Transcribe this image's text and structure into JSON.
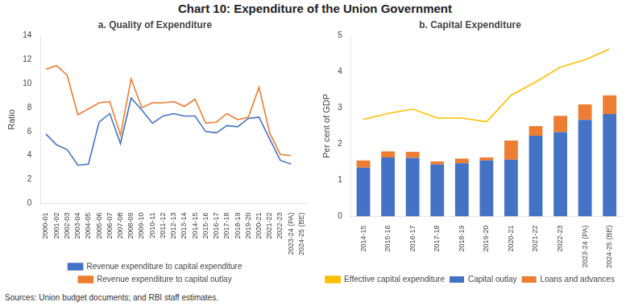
{
  "title": "Chart 10: Expenditure of the Union Government",
  "annotations": [
    "Sources: Union budget documents; and RBI staff estimates."
  ],
  "chart_data": [
    {
      "type": "line",
      "title": "a. Quality of Expenditure",
      "ylabel": "Ratio",
      "categories": [
        "2000-01",
        "2001-02",
        "2002-03",
        "2003-04",
        "2004-05",
        "2005-06",
        "2006-07",
        "2007-08",
        "2008-09",
        "2009-10",
        "2010-11",
        "2011-12",
        "2012-13",
        "2013-14",
        "2014-15",
        "2015-16",
        "2016-17",
        "2017-18",
        "2018-19",
        "2019-20",
        "2020-21",
        "2021-22",
        "2022-23",
        "2023-24 (PA)",
        "2024-25 (BE)"
      ],
      "series": [
        {
          "name": "Revenue expenditure to capital expenditure",
          "color": "#4472c4",
          "values": [
            5.8,
            4.9,
            4.5,
            3.2,
            3.3,
            6.8,
            7.5,
            5.0,
            8.8,
            7.8,
            6.7,
            7.3,
            7.5,
            7.3,
            7.3,
            6.0,
            5.9,
            6.5,
            6.4,
            7.1,
            7.2,
            5.4,
            3.6,
            3.3,
            null
          ]
        },
        {
          "name": "Revenue expenditure to capital outlay",
          "color": "#ed7d31",
          "values": [
            11.2,
            11.5,
            10.7,
            7.4,
            7.9,
            8.4,
            8.5,
            5.7,
            10.4,
            8.0,
            8.4,
            8.4,
            8.5,
            8.1,
            8.7,
            6.7,
            6.8,
            7.5,
            7.0,
            7.2,
            9.7,
            5.9,
            4.1,
            4.0,
            null
          ]
        }
      ],
      "ylim": [
        0,
        14
      ],
      "yticks": [
        0,
        2,
        4,
        6,
        8,
        10,
        12,
        14
      ],
      "grid": false,
      "legend": "bottom"
    },
    {
      "type": "bar",
      "title": "b. Capital Expenditure",
      "ylabel": "Per cent of GDP",
      "categories": [
        "2014-15",
        "2015-16",
        "2016-17",
        "2017-18",
        "2018-19",
        "2019-20",
        "2020-21",
        "2021-22",
        "2022-23",
        "2023-24 (PA)",
        "2024-25 (BE)"
      ],
      "series": [
        {
          "name": "Capital outlay",
          "color": "#4472c4",
          "values": [
            1.35,
            1.63,
            1.62,
            1.44,
            1.47,
            1.55,
            1.57,
            2.23,
            2.33,
            2.67,
            2.83
          ]
        },
        {
          "name": "Loans and advances",
          "color": "#ed7d31",
          "values": [
            0.2,
            0.17,
            0.17,
            0.08,
            0.13,
            0.08,
            0.53,
            0.27,
            0.45,
            0.43,
            0.52
          ]
        },
        {
          "name": "Effective capital expenditure",
          "type": "line",
          "color": "#ffc000",
          "values": [
            2.68,
            2.85,
            2.97,
            2.72,
            2.72,
            2.62,
            3.35,
            3.72,
            4.13,
            4.33,
            4.63
          ]
        }
      ],
      "stacked": true,
      "ylim": [
        0,
        5
      ],
      "yticks": [
        0,
        1,
        2,
        3,
        4,
        5
      ],
      "grid": false,
      "legend": "bottom"
    }
  ]
}
